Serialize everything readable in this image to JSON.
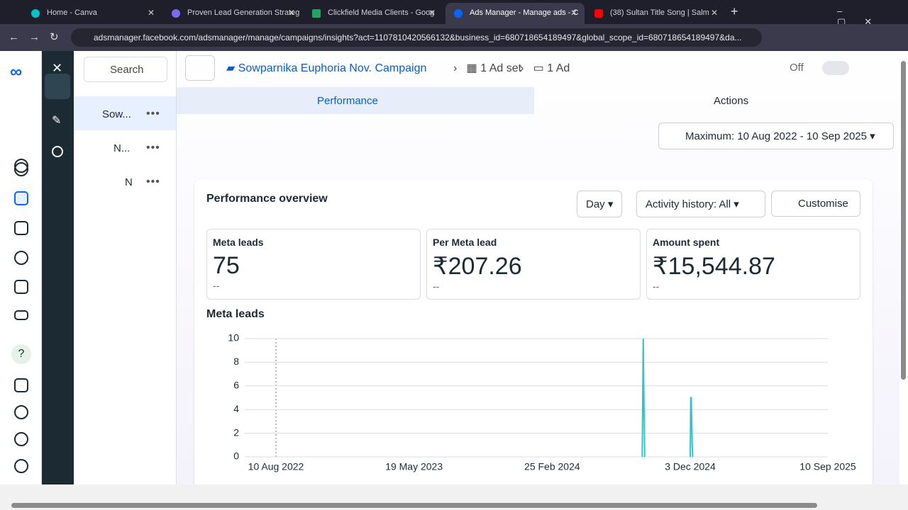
{
  "browser": {
    "tabs": [
      "Home - Canva",
      "Proven Lead Generation Strateg",
      "Clickfield Media Clients - Goog",
      "Ads Manager - Manage ads - C",
      "(38) Sultan Title Song | Salm"
    ],
    "url": "adsmanager.facebook.com/adsmanager/manage/campaigns/insights?act=1107810420566132&business_id=680718654189497&global_scope_id=680718654189497&da..."
  },
  "tree": {
    "search": "Search",
    "items": [
      "Sow...",
      "N...",
      "N"
    ]
  },
  "header": {
    "campaign": "Sowparnika Euphoria Nov. Campaign",
    "ad_set": "1 Ad set",
    "ad": "1 Ad",
    "status": "Off"
  },
  "view_tabs": [
    "Performance",
    "Actions"
  ],
  "date_range": "Maximum: 10 Aug 2022 - 10 Sep 2025",
  "overview": {
    "title": "Performance overview",
    "controls": [
      "Day",
      "Activity history: All",
      "Customise"
    ],
    "metrics": [
      {
        "label": "Meta leads",
        "value": 75,
        "change": "--"
      },
      {
        "label": "Per Meta lead",
        "value": "₹207.26",
        "change": "--"
      },
      {
        "label": "Amount spent",
        "value": "₹15,544.87",
        "change": "--"
      }
    ]
  },
  "chart_data": {
    "type": "line",
    "title": "Meta leads",
    "x": [
      "2024-08-27",
      "2024-08-28",
      "2024-08-29",
      "2024-08-30",
      "2024-08-31",
      "2024-09-01",
      "2024-10-31",
      "2024-12-03",
      "2024-12-04",
      "2024-12-05",
      "2024-12-06",
      "2024-12-07",
      "2024-12-08"
    ],
    "values": [
      0,
      5,
      10,
      6,
      3,
      0,
      null,
      0,
      5,
      5,
      3,
      1,
      0
    ],
    "color": "#2ec4c9",
    "xlim": [
      "2022-08-10",
      "2025-09-10"
    ],
    "xticks": [
      {
        "value": "2022-08-10",
        "label": "10 Aug 2022"
      },
      {
        "value": "2023-05-19",
        "label": "19 May 2023"
      },
      {
        "value": "2024-02-25",
        "label": "25 Feb 2024"
      },
      {
        "value": "2024-12-03",
        "label": "3 Dec 2024"
      },
      {
        "value": "2025-09-10",
        "label": "10 Sep 2025"
      }
    ],
    "ylim": [
      0,
      10
    ],
    "yticks": [
      0,
      2,
      4,
      6,
      8,
      10
    ],
    "grid": true
  }
}
